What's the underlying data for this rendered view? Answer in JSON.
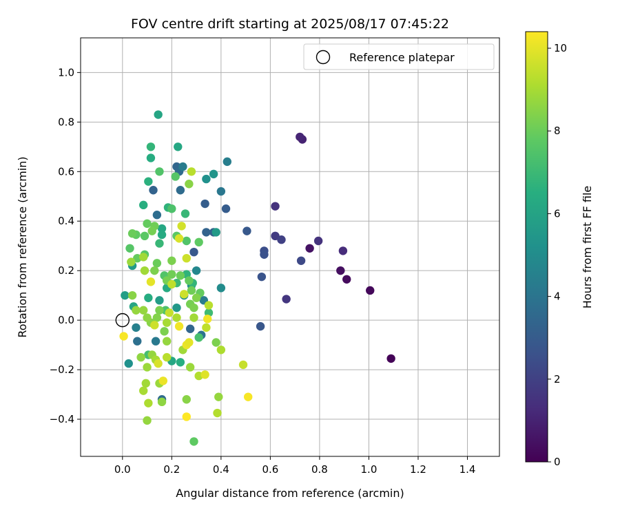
{
  "chart_data": {
    "type": "scatter",
    "title": "FOV centre drift starting at 2025/08/17 07:45:22",
    "xlabel": "Angular distance from reference (arcmin)",
    "ylabel": "Rotation from reference (arcmin)",
    "xlim": [
      -0.17,
      1.53
    ],
    "ylim": [
      -0.55,
      1.14
    ],
    "x_ticks": [
      0.0,
      0.2,
      0.4,
      0.6,
      0.8,
      1.0,
      1.2,
      1.4
    ],
    "x_tick_labels": [
      "0.0",
      "0.2",
      "0.4",
      "0.6",
      "0.8",
      "1.0",
      "1.2",
      "1.4"
    ],
    "y_ticks": [
      -0.4,
      -0.2,
      0.0,
      0.2,
      0.4,
      0.6,
      0.8,
      1.0
    ],
    "y_tick_labels": [
      "−0.4",
      "−0.2",
      "0.0",
      "0.2",
      "0.4",
      "0.6",
      "0.8",
      "1.0"
    ],
    "grid": true,
    "legend": {
      "placement": "top-right",
      "entries": [
        "Reference platepar"
      ]
    },
    "reference_point": {
      "x": 0.0,
      "y": 0.0,
      "label": "Reference platepar"
    },
    "colorbar": {
      "label": "Hours from first FF file",
      "colormap": "viridis",
      "range": [
        0,
        10.4
      ],
      "ticks": [
        0,
        2,
        4,
        6,
        8,
        10
      ],
      "tick_labels": [
        "0",
        "2",
        "4",
        "6",
        "8",
        "10"
      ]
    },
    "points": [
      [
        1.09,
        -0.155,
        0.1
      ],
      [
        1.005,
        0.12,
        0.2
      ],
      [
        0.91,
        0.165,
        0.3
      ],
      [
        0.885,
        0.2,
        0.4
      ],
      [
        0.76,
        0.29,
        0.5
      ],
      [
        0.73,
        0.73,
        1.0
      ],
      [
        0.72,
        0.74,
        1.1
      ],
      [
        0.895,
        0.28,
        1.3
      ],
      [
        0.795,
        0.32,
        1.5
      ],
      [
        0.62,
        0.46,
        1.5
      ],
      [
        0.665,
        0.085,
        1.6
      ],
      [
        0.62,
        0.34,
        1.8
      ],
      [
        0.645,
        0.325,
        2.0
      ],
      [
        0.725,
        0.24,
        2.3
      ],
      [
        0.575,
        0.28,
        2.5
      ],
      [
        0.575,
        0.265,
        2.6
      ],
      [
        0.565,
        0.175,
        2.7
      ],
      [
        0.56,
        -0.025,
        2.8
      ],
      [
        0.505,
        0.36,
        2.9
      ],
      [
        0.42,
        0.45,
        3.0
      ],
      [
        0.335,
        0.47,
        3.1
      ],
      [
        0.37,
        0.355,
        3.2
      ],
      [
        0.34,
        0.355,
        3.3
      ],
      [
        0.22,
        0.62,
        3.4
      ],
      [
        0.23,
        0.6,
        3.6
      ],
      [
        0.235,
        0.525,
        3.6
      ],
      [
        0.125,
        0.525,
        3.3
      ],
      [
        0.14,
        0.425,
        3.7
      ],
      [
        0.4,
        0.52,
        4.1
      ],
      [
        0.245,
        0.62,
        4.3
      ],
      [
        0.425,
        0.64,
        4.4
      ],
      [
        0.29,
        0.275,
        2.9
      ],
      [
        0.275,
        -0.035,
        3.4
      ],
      [
        0.32,
        -0.06,
        3.9
      ],
      [
        0.16,
        -0.32,
        3.6
      ],
      [
        0.06,
        -0.085,
        3.8
      ],
      [
        0.135,
        -0.085,
        4.2
      ],
      [
        0.055,
        -0.03,
        4.5
      ],
      [
        0.33,
        0.08,
        4.3
      ],
      [
        0.3,
        0.2,
        4.8
      ],
      [
        0.4,
        0.13,
        5.0
      ],
      [
        0.34,
        0.57,
        5.2
      ],
      [
        0.37,
        0.59,
        5.4
      ],
      [
        0.38,
        0.355,
        5.6
      ],
      [
        0.25,
        0.1,
        5.1
      ],
      [
        0.28,
        0.14,
        5.3
      ],
      [
        0.22,
        0.05,
        5.5
      ],
      [
        0.15,
        0.08,
        5.7
      ],
      [
        0.01,
        0.1,
        5.8
      ],
      [
        0.025,
        -0.175,
        5.2
      ],
      [
        0.04,
        0.22,
        5.6
      ],
      [
        0.145,
        0.83,
        6.1
      ],
      [
        0.225,
        0.7,
        6.2
      ],
      [
        0.115,
        0.655,
        6.4
      ],
      [
        0.115,
        0.7,
        6.8
      ],
      [
        0.105,
        0.56,
        6.6
      ],
      [
        0.085,
        0.465,
        6.5
      ],
      [
        0.185,
        0.455,
        6.7
      ],
      [
        0.255,
        0.43,
        6.9
      ],
      [
        0.16,
        0.37,
        6.2
      ],
      [
        0.16,
        0.345,
        6.3
      ],
      [
        0.15,
        0.31,
        6.9
      ],
      [
        0.045,
        0.055,
        6.1
      ],
      [
        0.105,
        0.09,
        6.4
      ],
      [
        0.18,
        0.13,
        6.3
      ],
      [
        0.2,
        -0.165,
        6.2
      ],
      [
        0.235,
        -0.17,
        6.5
      ],
      [
        0.26,
        0.185,
        6.7
      ],
      [
        0.285,
        0.15,
        6.8
      ],
      [
        0.22,
        0.15,
        7.0
      ],
      [
        0.35,
        0.03,
        7.1
      ],
      [
        0.31,
        -0.07,
        7.3
      ],
      [
        0.175,
        0.04,
        7.4
      ],
      [
        0.105,
        -0.14,
        7.2
      ],
      [
        0.15,
        0.6,
        7.5
      ],
      [
        0.215,
        0.58,
        7.6
      ],
      [
        0.22,
        0.34,
        7.7
      ],
      [
        0.26,
        0.32,
        7.5
      ],
      [
        0.31,
        0.315,
        7.8
      ],
      [
        0.315,
        0.11,
        7.9
      ],
      [
        0.2,
        0.45,
        7.4
      ],
      [
        0.055,
        0.345,
        7.8
      ],
      [
        0.04,
        0.35,
        8.0
      ],
      [
        0.03,
        0.29,
        7.6
      ],
      [
        0.06,
        0.25,
        7.9
      ],
      [
        0.09,
        0.265,
        7.6
      ],
      [
        0.09,
        0.34,
        7.7
      ],
      [
        0.1,
        0.39,
        7.9
      ],
      [
        0.13,
        0.38,
        8.1
      ],
      [
        0.14,
        0.23,
        8.0
      ],
      [
        0.13,
        0.2,
        8.3
      ],
      [
        0.17,
        0.18,
        7.5
      ],
      [
        0.18,
        0.16,
        8.2
      ],
      [
        0.2,
        0.24,
        8.3
      ],
      [
        0.235,
        0.18,
        8.0
      ],
      [
        0.27,
        0.16,
        7.9
      ],
      [
        0.28,
        0.12,
        8.1
      ],
      [
        0.275,
        0.065,
        8.2
      ],
      [
        0.29,
        0.05,
        8.3
      ],
      [
        0.3,
        0.09,
        8.4
      ],
      [
        0.15,
        0.04,
        8.3
      ],
      [
        0.14,
        0.01,
        8.4
      ],
      [
        0.115,
        -0.01,
        8.5
      ],
      [
        0.1,
        0.01,
        8.6
      ],
      [
        0.085,
        0.04,
        8.7
      ],
      [
        0.055,
        0.04,
        8.7
      ],
      [
        0.04,
        0.1,
        8.5
      ],
      [
        0.035,
        0.235,
        8.8
      ],
      [
        0.09,
        0.2,
        8.9
      ],
      [
        0.085,
        0.255,
        8.9
      ],
      [
        0.075,
        -0.15,
        8.6
      ],
      [
        0.1,
        -0.19,
        8.8
      ],
      [
        0.12,
        -0.14,
        8.7
      ],
      [
        0.135,
        -0.16,
        9.0
      ],
      [
        0.15,
        -0.255,
        8.8
      ],
      [
        0.16,
        -0.33,
        8.6
      ],
      [
        0.095,
        -0.255,
        8.9
      ],
      [
        0.085,
        -0.285,
        9.0
      ],
      [
        0.105,
        -0.335,
        9.1
      ],
      [
        0.1,
        -0.405,
        8.7
      ],
      [
        0.245,
        -0.12,
        8.9
      ],
      [
        0.275,
        -0.19,
        8.8
      ],
      [
        0.26,
        -0.32,
        8.5
      ],
      [
        0.31,
        -0.225,
        9.2
      ],
      [
        0.29,
        -0.49,
        7.8
      ],
      [
        0.38,
        -0.09,
        8.3
      ],
      [
        0.39,
        -0.31,
        8.7
      ],
      [
        0.385,
        -0.375,
        9.2
      ],
      [
        0.4,
        -0.12,
        9.1
      ],
      [
        0.29,
        0.01,
        8.9
      ],
      [
        0.34,
        -0.03,
        9.4
      ],
      [
        0.35,
        0.06,
        9.3
      ],
      [
        0.22,
        0.01,
        9.1
      ],
      [
        0.18,
        -0.01,
        9.0
      ],
      [
        0.18,
        -0.085,
        8.7
      ],
      [
        0.17,
        -0.045,
        8.3
      ],
      [
        0.19,
        0.03,
        9.5
      ],
      [
        0.2,
        0.145,
        9.4
      ],
      [
        0.26,
        0.25,
        9.6
      ],
      [
        0.23,
        0.33,
        9.8
      ],
      [
        0.24,
        0.38,
        9.7
      ],
      [
        0.25,
        0.105,
        9.6
      ],
      [
        0.28,
        0.6,
        9.3
      ],
      [
        0.27,
        0.55,
        8.5
      ],
      [
        0.12,
        0.36,
        8.2
      ],
      [
        0.18,
        -0.15,
        9.3
      ],
      [
        0.13,
        -0.02,
        9.6
      ],
      [
        0.115,
        0.155,
        10.0
      ],
      [
        0.165,
        -0.245,
        10.1
      ],
      [
        0.005,
        -0.065,
        10.3
      ],
      [
        0.23,
        -0.025,
        10.2
      ],
      [
        0.26,
        -0.1,
        10.1
      ],
      [
        0.27,
        -0.09,
        10.0
      ],
      [
        0.335,
        -0.22,
        9.9
      ],
      [
        0.345,
        0.005,
        10.2
      ],
      [
        0.49,
        -0.18,
        9.5
      ],
      [
        0.51,
        -0.31,
        10.3
      ],
      [
        0.26,
        -0.39,
        10.4
      ],
      [
        0.145,
        -0.175,
        9.8
      ],
      [
        0.2,
        0.185,
        8.1
      ]
    ]
  }
}
